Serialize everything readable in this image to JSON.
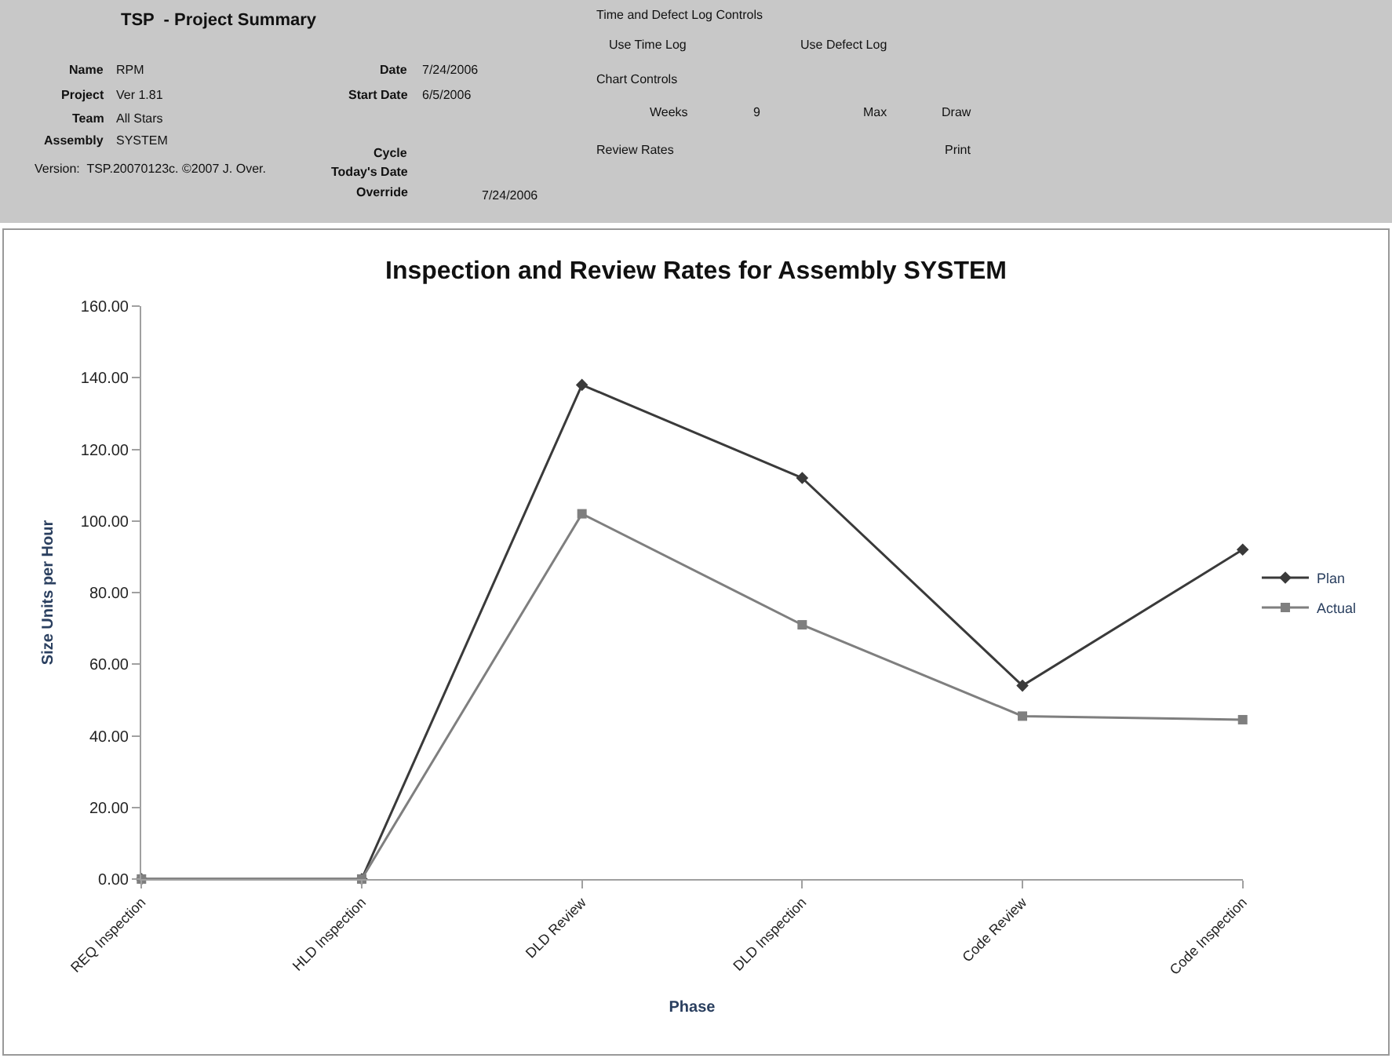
{
  "chart_data": {
    "type": "line",
    "title": "Inspection and Review Rates for Assembly SYSTEM",
    "xlabel": "Phase",
    "ylabel": "Size Units per Hour",
    "categories": [
      "REQ Inspection",
      "HLD Inspection",
      "DLD Review",
      "DLD Inspection",
      "Code Review",
      "Code Inspection"
    ],
    "series": [
      {
        "name": "Plan",
        "color": "#3a3a3a",
        "marker": "diamond",
        "values": [
          0,
          0,
          138,
          112,
          54,
          92
        ]
      },
      {
        "name": "Actual",
        "color": "#7f7f7f",
        "marker": "square",
        "values": [
          0,
          0,
          102,
          71,
          45.5,
          44.5
        ]
      }
    ],
    "ylim": [
      0,
      160
    ],
    "yticks": [
      {
        "value": 0,
        "label": "0.00"
      },
      {
        "value": 20,
        "label": "20.00"
      },
      {
        "value": 40,
        "label": "40.00"
      },
      {
        "value": 60,
        "label": "60.00"
      },
      {
        "value": 80,
        "label": "80.00"
      },
      {
        "value": 100,
        "label": "100.00"
      },
      {
        "value": 120,
        "label": "120.00"
      },
      {
        "value": 140,
        "label": "140.00"
      },
      {
        "value": 160,
        "label": "160.00"
      }
    ],
    "legend": "right",
    "line_style": "solid",
    "annotations": [
      "TSP  - Project Summary",
      "Name",
      "RPM",
      "Project",
      "Ver 1.81",
      "Team",
      "All Stars",
      "Assembly",
      "SYSTEM",
      "Version:  TSP.20070123c. ©2007 J. Over.",
      "Date",
      "7/24/2006",
      "Start Date",
      "6/5/2006",
      "Cycle",
      "Today's Date",
      "Override",
      "7/24/2006",
      "Time and Defect Log Controls",
      "Use Time Log",
      "Use Defect Log",
      "Chart Controls",
      "Weeks",
      "9",
      "Max",
      "Draw",
      "Review Rates",
      "Print"
    ]
  }
}
